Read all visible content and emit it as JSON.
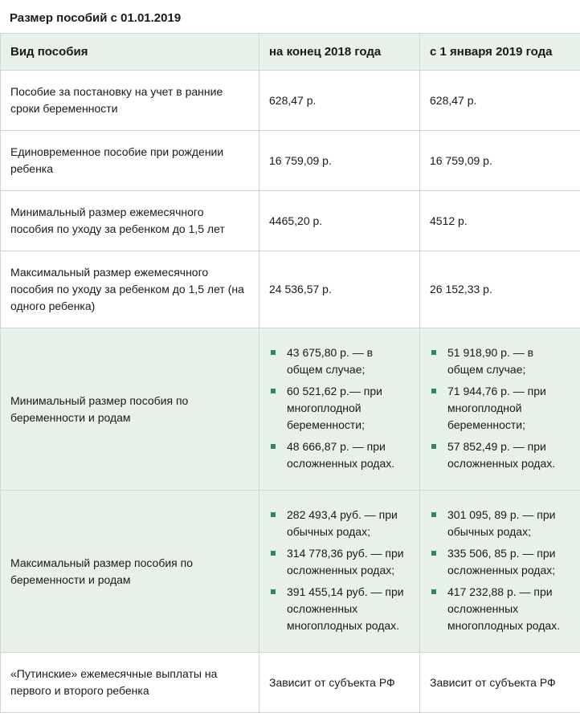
{
  "title": "Размер пособий с 01.01.2019",
  "colors": {
    "header_bg": "#e8f0ea",
    "border": "#d0d7d3",
    "text": "#1a1a1a",
    "bullet": "#2e8b57",
    "bg": "#ffffff"
  },
  "columns": {
    "c0": "Вид пособия",
    "c1": "на конец 2018 года",
    "c2": "с 1 января 2019 года"
  },
  "rows": [
    {
      "shaded": false,
      "label": "Пособие за постановку на учет в ранние сроки беременности",
      "v2018": "628,47 р.",
      "v2019": "628,47 р."
    },
    {
      "shaded": false,
      "label": "Единовременное пособие при рождении ребенка",
      "v2018": "16 759,09 р.",
      "v2019": "16 759,09 р."
    },
    {
      "shaded": false,
      "label": "Минимальный размер ежемесячного пособия по уходу за ребенком до 1,5 лет",
      "v2018": "4465,20 р.",
      "v2019": "4512 р."
    },
    {
      "shaded": false,
      "label": "Максимальный размер ежемесячного пособия по уходу за ребенком до 1,5 лет (на одного ребенка)",
      "v2018": "24 536,57 р.",
      "v2019": "26 152,33 р."
    },
    {
      "shaded": true,
      "label": "Минимальный размер пособия по беременности и родам",
      "list2018": [
        "43 675,80 р. — в общем случае;",
        "60 521,62 р.— при многоплодной беременности;",
        "48 666,87 р. — при осложненных родах."
      ],
      "list2019": [
        "51 918,90 р. — в общем случае;",
        "71 944,76 р. — при многоплодной беременности;",
        "57 852,49 р. — при осложненных родах."
      ]
    },
    {
      "shaded": true,
      "label": "Максимальный размер пособия по беременности и родам",
      "list2018": [
        "282 493,4 руб. — при обычных родах;",
        "314 778,36 руб. — при осложненных родах;",
        "391 455,14 руб. — при осложненных многоплодных родах."
      ],
      "list2019": [
        "301 095, 89 р. — при обычных родах;",
        "335 506, 85 р. — при осложненных родах;",
        "417 232,88 р. — при осложненных многоплодных родах."
      ]
    },
    {
      "shaded": false,
      "label": "«Путинские» ежемесячные выплаты на первого и второго ребенка",
      "v2018": "Зависит от субъекта РФ",
      "v2019": "Зависит от субъекта РФ"
    }
  ]
}
